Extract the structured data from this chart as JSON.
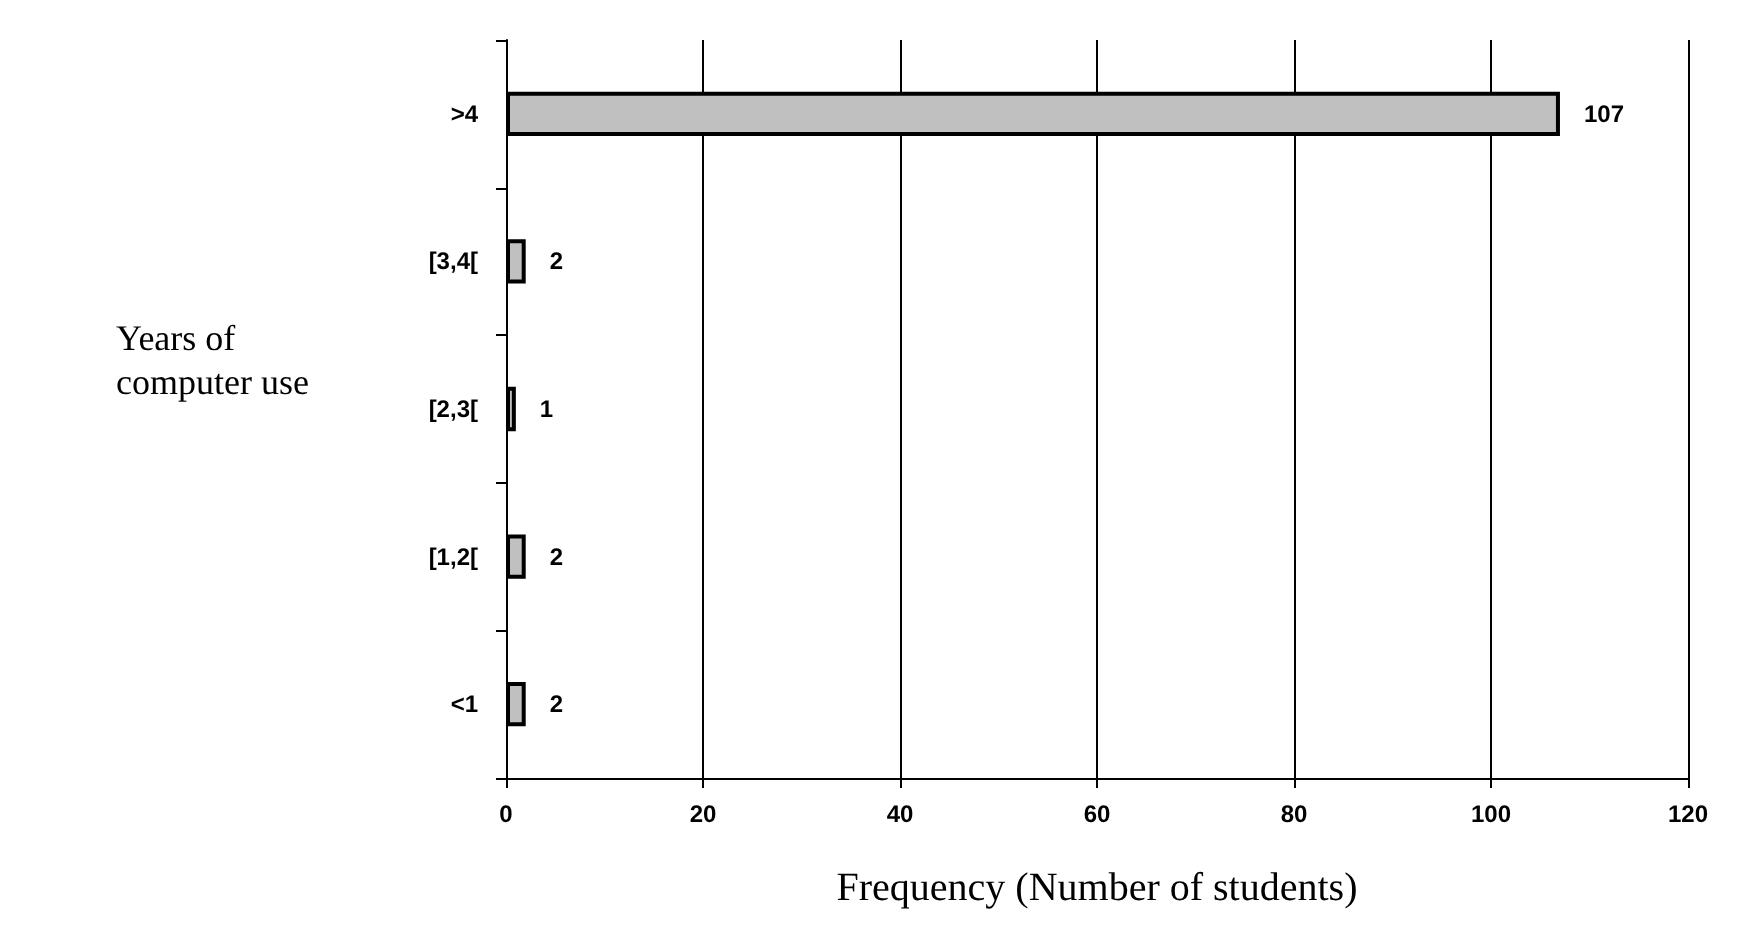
{
  "chart_data": {
    "type": "bar",
    "orientation": "horizontal",
    "categories": [
      ">4",
      "[3,4[",
      "[2,3[",
      "[1,2[",
      "<1"
    ],
    "values": [
      107,
      2,
      1,
      2,
      2
    ],
    "color": "#c0c0c0",
    "xlabel": "Frequency (Number of students)",
    "ylabel": "Years of computer use",
    "xlim": [
      0,
      120
    ],
    "xticks": [
      0,
      20,
      40,
      60,
      80,
      100,
      120
    ],
    "grid": "x",
    "data_labels": true
  }
}
